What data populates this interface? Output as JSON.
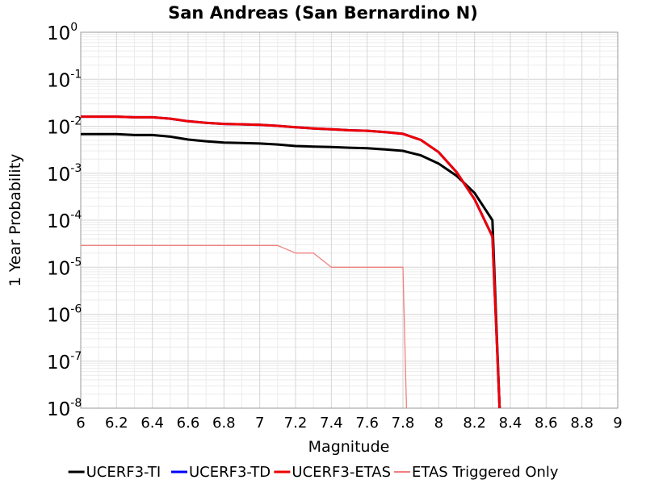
{
  "chart_data": {
    "type": "line",
    "title": "San Andreas (San Bernardino N)",
    "xlabel": "Magnitude",
    "ylabel": "1 Year Probability",
    "xlim": [
      6,
      9
    ],
    "ylim": [
      1e-08,
      1
    ],
    "yscale": "log",
    "grid": true,
    "legend_position": "bottom",
    "x_ticks": [
      "6",
      "6.2",
      "6.4",
      "6.6",
      "6.8",
      "7",
      "7.2",
      "7.4",
      "7.6",
      "7.8",
      "8",
      "8.2",
      "8.4",
      "8.6",
      "8.8",
      "9"
    ],
    "y_ticks": [
      {
        "base": "10",
        "exp": "0"
      },
      {
        "base": "10",
        "exp": "-1"
      },
      {
        "base": "10",
        "exp": "-2"
      },
      {
        "base": "10",
        "exp": "-3"
      },
      {
        "base": "10",
        "exp": "-4"
      },
      {
        "base": "10",
        "exp": "-5"
      },
      {
        "base": "10",
        "exp": "-6"
      },
      {
        "base": "10",
        "exp": "-7"
      },
      {
        "base": "10",
        "exp": "-8"
      }
    ],
    "series": [
      {
        "name": "UCERF3-TI",
        "color": "#000000",
        "line_width": 3,
        "x": [
          6.0,
          6.1,
          6.2,
          6.3,
          6.4,
          6.5,
          6.6,
          6.7,
          6.8,
          6.9,
          7.0,
          7.1,
          7.2,
          7.3,
          7.4,
          7.5,
          7.6,
          7.7,
          7.8,
          7.9,
          8.0,
          8.1,
          8.2,
          8.3,
          8.34
        ],
        "y": [
          0.0068,
          0.0068,
          0.0068,
          0.0065,
          0.0065,
          0.006,
          0.0052,
          0.0048,
          0.0045,
          0.0044,
          0.0043,
          0.0041,
          0.0038,
          0.0037,
          0.0036,
          0.0035,
          0.0034,
          0.0032,
          0.003,
          0.0024,
          0.0016,
          0.00088,
          0.00038,
          0.0001,
          1e-08
        ]
      },
      {
        "name": "UCERF3-TD",
        "color": "#0000ff",
        "line_width": 3,
        "x": [
          6.0,
          6.1,
          6.2,
          6.3,
          6.4,
          6.5,
          6.6,
          6.7,
          6.8,
          6.9,
          7.0,
          7.1,
          7.2,
          7.3,
          7.4,
          7.5,
          7.6,
          7.7,
          7.8,
          7.9,
          8.0,
          8.1,
          8.2,
          8.3,
          8.34
        ],
        "y": [
          0.016,
          0.016,
          0.016,
          0.0155,
          0.0155,
          0.0145,
          0.0128,
          0.0118,
          0.0112,
          0.011,
          0.0107,
          0.0102,
          0.0095,
          0.009,
          0.0086,
          0.0082,
          0.008,
          0.0075,
          0.0069,
          0.0051,
          0.0028,
          0.00105,
          0.00028,
          4.5e-05,
          1e-08
        ]
      },
      {
        "name": "UCERF3-ETAS",
        "color": "#ee0000",
        "line_width": 3,
        "x": [
          6.0,
          6.1,
          6.2,
          6.3,
          6.4,
          6.5,
          6.6,
          6.7,
          6.8,
          6.9,
          7.0,
          7.1,
          7.2,
          7.3,
          7.4,
          7.5,
          7.6,
          7.7,
          7.8,
          7.9,
          8.0,
          8.1,
          8.2,
          8.3,
          8.34
        ],
        "y": [
          0.016,
          0.016,
          0.016,
          0.0155,
          0.0155,
          0.0145,
          0.0128,
          0.0118,
          0.0112,
          0.011,
          0.0107,
          0.0102,
          0.0095,
          0.009,
          0.0086,
          0.0082,
          0.008,
          0.0075,
          0.0069,
          0.0051,
          0.0028,
          0.00105,
          0.00028,
          4.5e-05,
          1e-08
        ]
      },
      {
        "name": "ETAS Triggered Only",
        "color": "#f08080",
        "line_width": 1.3,
        "x": [
          6.0,
          6.1,
          6.2,
          6.3,
          6.4,
          6.5,
          6.6,
          6.7,
          6.8,
          6.9,
          7.0,
          7.1,
          7.2,
          7.3,
          7.4,
          7.5,
          7.6,
          7.7,
          7.8,
          7.82
        ],
        "y": [
          2.9e-05,
          2.9e-05,
          2.9e-05,
          2.9e-05,
          2.9e-05,
          2.9e-05,
          2.9e-05,
          2.9e-05,
          2.9e-05,
          2.9e-05,
          2.9e-05,
          2.9e-05,
          2e-05,
          2e-05,
          1e-05,
          1e-05,
          1e-05,
          1e-05,
          1e-05,
          1e-08
        ]
      }
    ]
  }
}
